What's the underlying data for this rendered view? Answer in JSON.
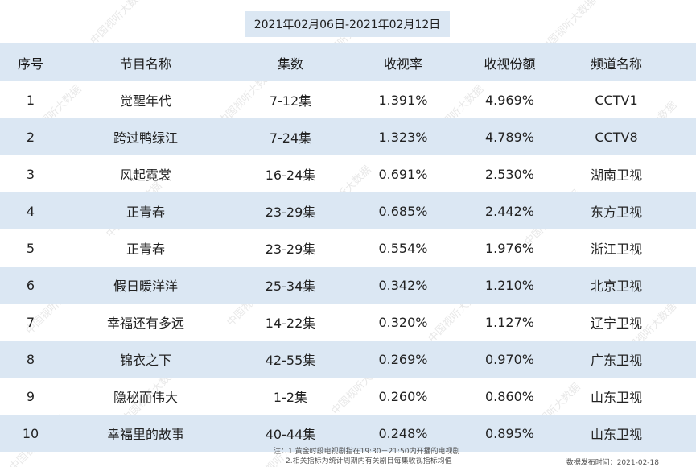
{
  "date_range": "2021年02月06日-2021年02月12日",
  "headers": {
    "rank": "序号",
    "name": "节目名称",
    "episodes": "集数",
    "rating": "收视率",
    "share": "收视份额",
    "channel": "频道名称"
  },
  "rows": [
    {
      "rank": "1",
      "name": "觉醒年代",
      "episodes": "7-12集",
      "rating": "1.391%",
      "share": "4.969%",
      "channel": "CCTV1"
    },
    {
      "rank": "2",
      "name": "跨过鸭绿江",
      "episodes": "7-24集",
      "rating": "1.323%",
      "share": "4.789%",
      "channel": "CCTV8"
    },
    {
      "rank": "3",
      "name": "风起霓裳",
      "episodes": "16-24集",
      "rating": "0.691%",
      "share": "2.530%",
      "channel": "湖南卫视"
    },
    {
      "rank": "4",
      "name": "正青春",
      "episodes": "23-29集",
      "rating": "0.685%",
      "share": "2.442%",
      "channel": "东方卫视"
    },
    {
      "rank": "5",
      "name": "正青春",
      "episodes": "23-29集",
      "rating": "0.554%",
      "share": "1.976%",
      "channel": "浙江卫视"
    },
    {
      "rank": "6",
      "name": "假日暖洋洋",
      "episodes": "25-34集",
      "rating": "0.342%",
      "share": "1.210%",
      "channel": "北京卫视"
    },
    {
      "rank": "7",
      "name": "幸福还有多远",
      "episodes": "14-22集",
      "rating": "0.320%",
      "share": "1.127%",
      "channel": "辽宁卫视"
    },
    {
      "rank": "8",
      "name": "锦衣之下",
      "episodes": "42-55集",
      "rating": "0.269%",
      "share": "0.970%",
      "channel": "广东卫视"
    },
    {
      "rank": "9",
      "name": "隐秘而伟大",
      "episodes": "1-2集",
      "rating": "0.260%",
      "share": "0.860%",
      "channel": "山东卫视"
    },
    {
      "rank": "10",
      "name": "幸福里的故事",
      "episodes": "40-44集",
      "rating": "0.248%",
      "share": "0.895%",
      "channel": "山东卫视"
    }
  ],
  "footer": {
    "note_line1": "注：1.黄金时段电视剧指在19:30－21:50内开播的电视剧",
    "note_line2": "2.相关指标为统计周期内有关剧目每集收视指标均值",
    "release": "数据发布时间：2021-02-18"
  },
  "watermark": "中国视听大数据",
  "colors": {
    "band": "#dbe7f3",
    "text": "#222222"
  }
}
